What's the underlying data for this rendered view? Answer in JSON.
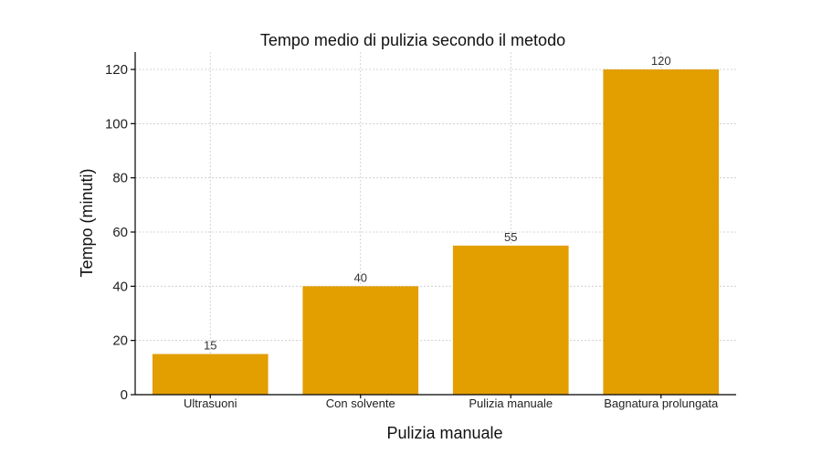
{
  "chart_data": {
    "type": "bar",
    "title": "Tempo medio di pulizia secondo il metodo",
    "xlabel": "Pulizia manuale",
    "ylabel": "Tempo (minuti)",
    "categories": [
      "Ultrasuoni",
      "Con solvente",
      "Pulizia manuale",
      "Bagnatura prolungata"
    ],
    "values": [
      15,
      40,
      55,
      120
    ],
    "ylim": [
      0,
      120
    ],
    "yticks": [
      0,
      20,
      40,
      60,
      80,
      100,
      120
    ],
    "grid": true,
    "bar_color": "#E39E00"
  }
}
